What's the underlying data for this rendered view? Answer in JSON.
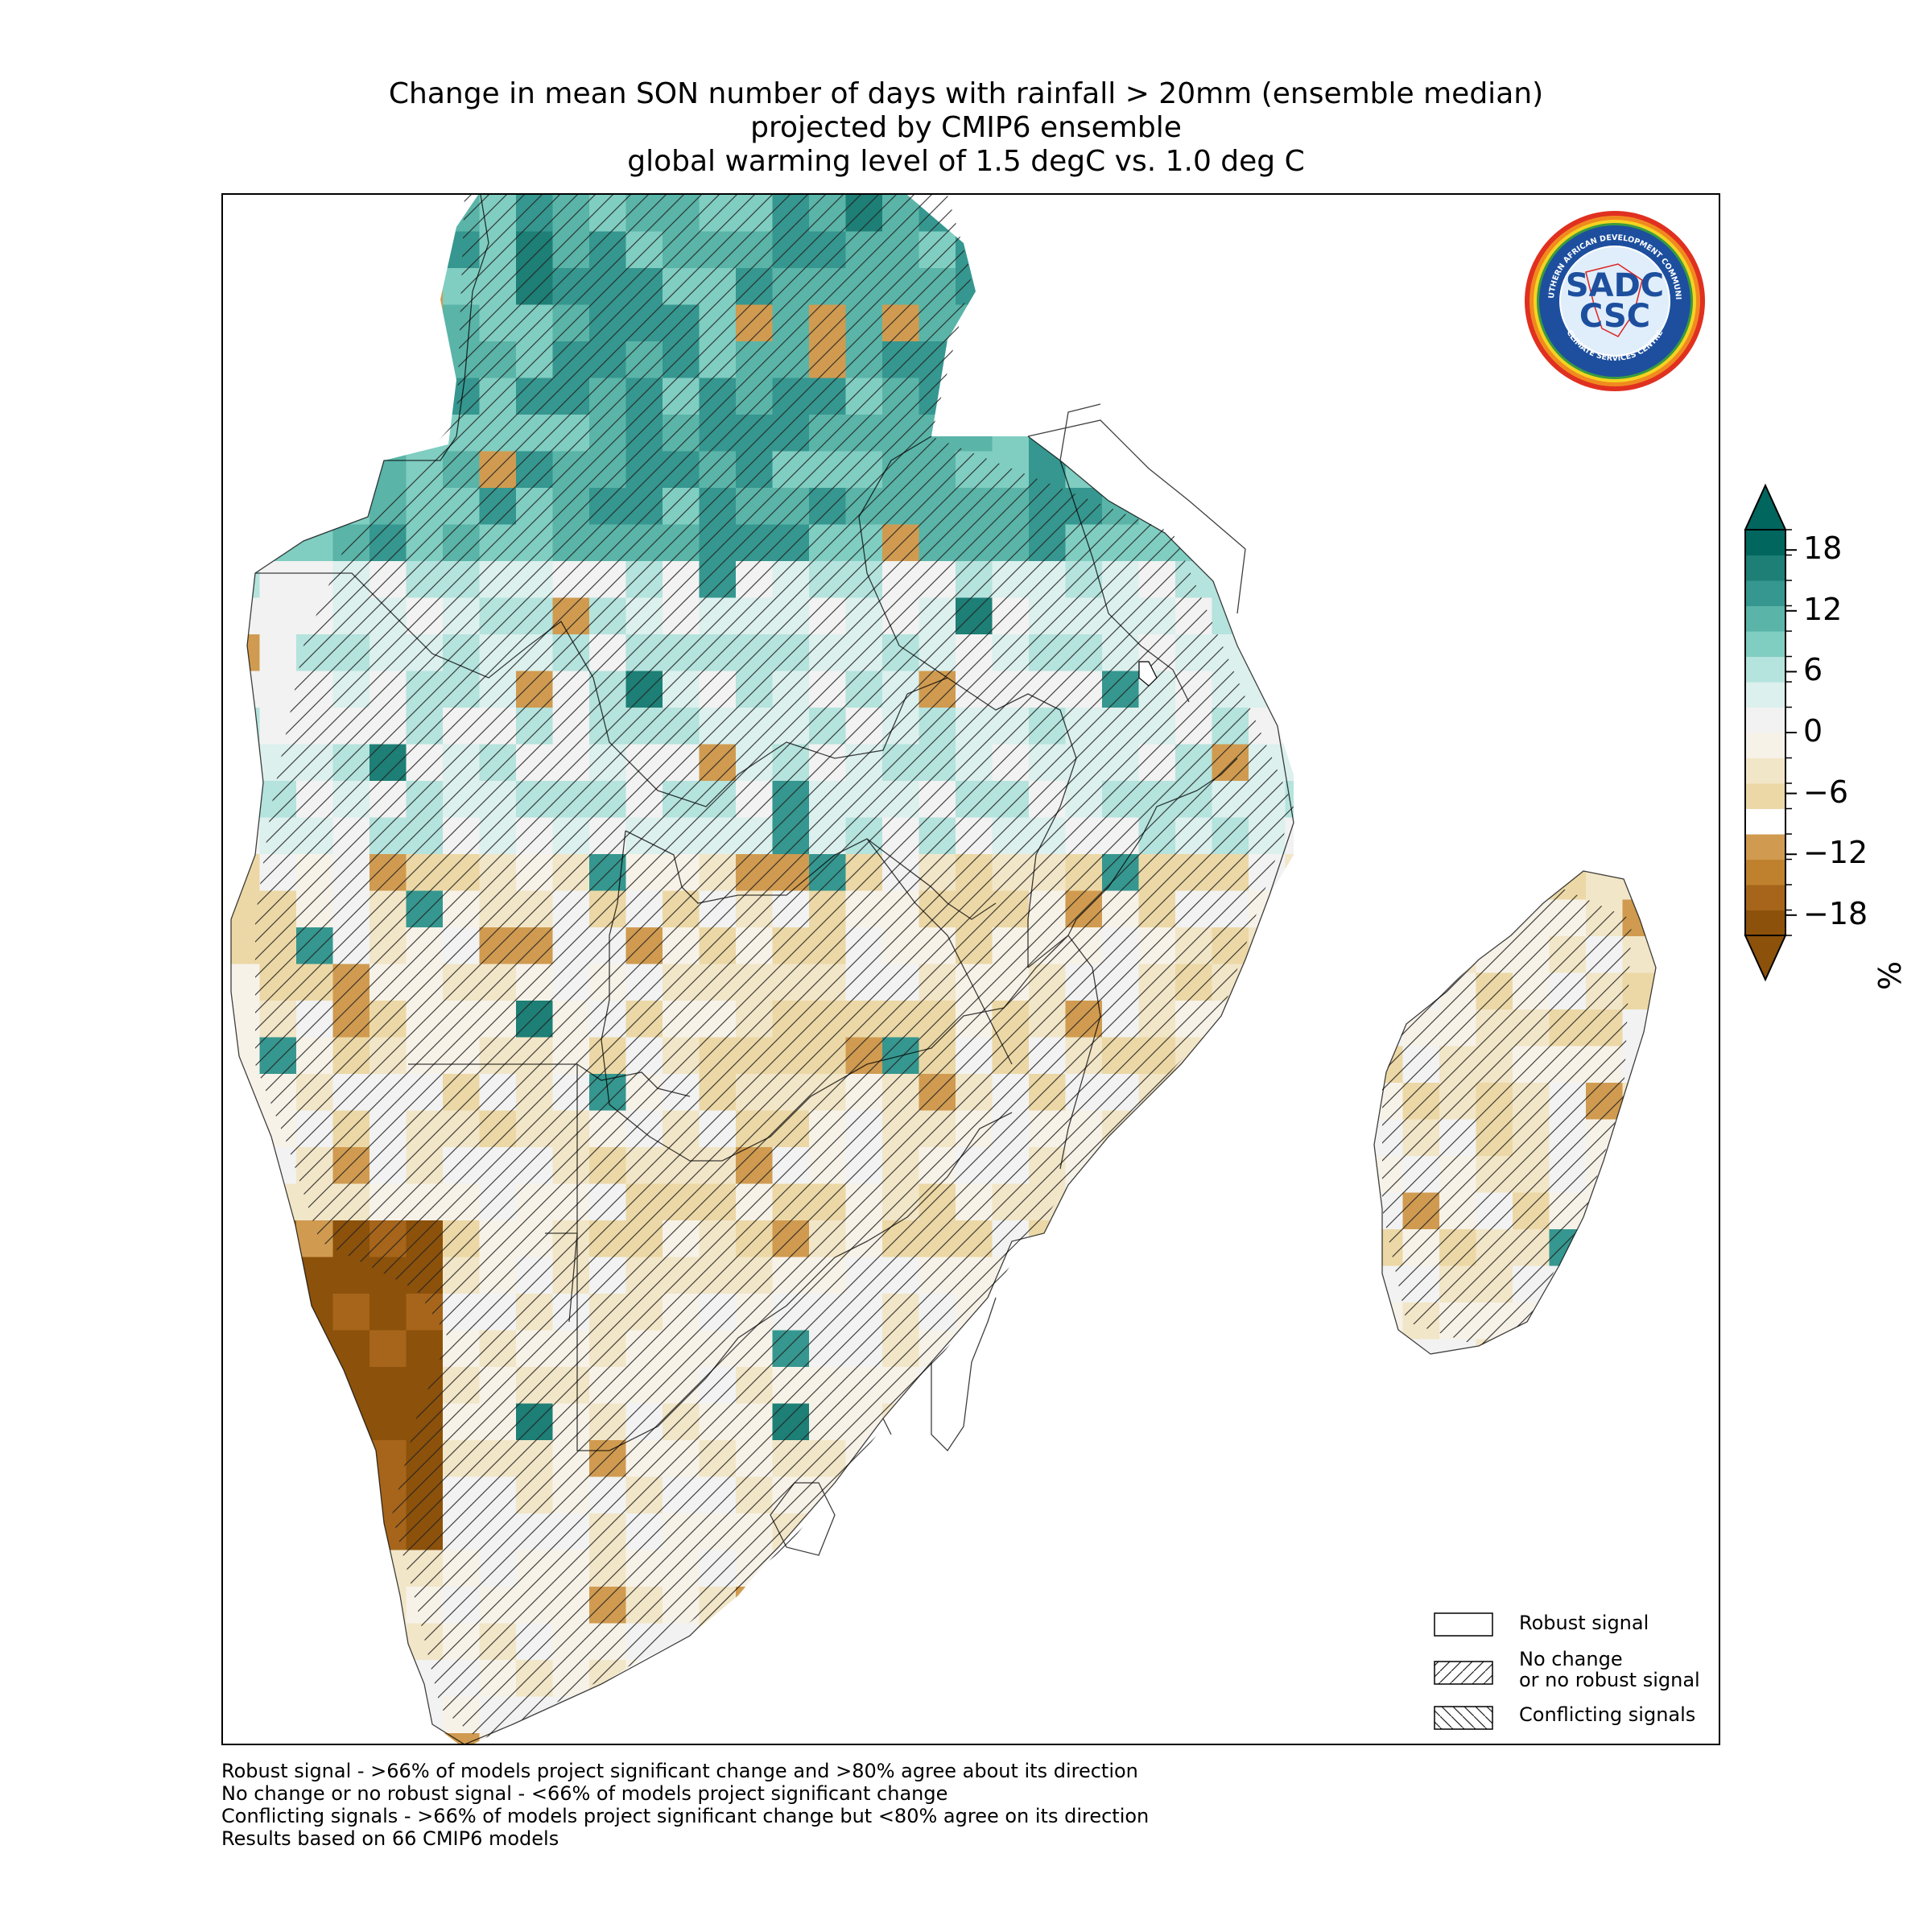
{
  "title": {
    "line1": "Change in mean SON number of days with rainfall > 20mm (ensemble median)",
    "line2": "projected by CMIP6 ensemble",
    "line3": "global warming level of 1.5 degC vs. 1.0 deg C"
  },
  "logo": {
    "top_text": "SOUTHERN AFRICAN DEVELOPMENT COMMUNITY",
    "bottom_text": "CLIMATE SERVICES CENTRE",
    "mark_top": "SADC",
    "mark_bottom": "CSC"
  },
  "legend": {
    "robust": "Robust signal",
    "nochange_line1": "No change",
    "nochange_line2": "or no robust signal",
    "conflicting": "Conflicting signals"
  },
  "footnotes": {
    "line1": "Robust signal - >66% of models project significant change and >80% agree about its direction",
    "line2": "No change or no robust signal - <66% of models project significant change",
    "line3": "Conflicting signals - >66% of models project significant change but <80% agree on its direction",
    "line4": "Results based on 66 CMIP6 models"
  },
  "colorbar": {
    "unit": "%",
    "ticks": [
      "18",
      "12",
      "6",
      "0",
      "−6",
      "−12",
      "−18"
    ],
    "tick_values": [
      18,
      12,
      6,
      0,
      -6,
      -12,
      -18
    ],
    "range": [
      -20,
      20
    ],
    "colors": [
      "#8c510a",
      "#a6651a",
      "#bf812d",
      "#d09b50",
      "#ffffff",
      "#ecd8a6",
      "#f2e6c8",
      "#f7f2e8",
      "#f1f2f1",
      "#dcf0ee",
      "#b5e3dd",
      "#80cdc1",
      "#5ab4a8",
      "#35978f",
      "#1d7f76",
      "#01665e"
    ]
  },
  "colors": {
    "robust_box": "#ffffff",
    "border": "#000000"
  }
}
